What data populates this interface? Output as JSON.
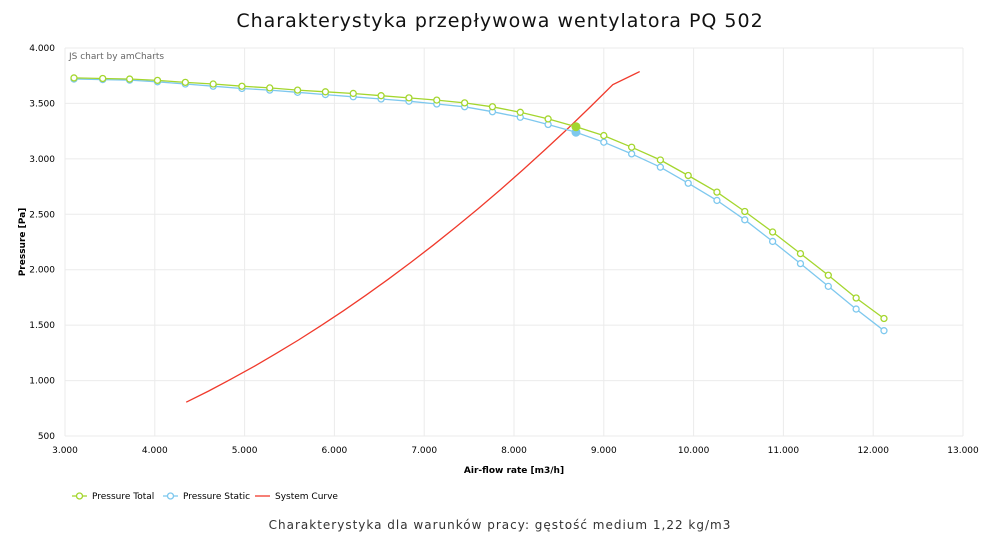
{
  "title": "Charakterystyka przepływowa wentylatora PQ 502",
  "subtitle": "Charakterystyka dla warunków pracy: gęstość medium 1,22 kg/m3",
  "credit": "JS chart by amCharts",
  "chart_data": {
    "type": "line",
    "xlabel": "Air-flow rate [m3/h]",
    "ylabel": "Pressure [Pa]",
    "xlim": [
      3000,
      13000
    ],
    "ylim": [
      500,
      4000
    ],
    "x_ticks": [
      "3.000",
      "4.000",
      "5.000",
      "6.000",
      "7.000",
      "8.000",
      "9.000",
      "10.000",
      "11.000",
      "12.000",
      "13.000"
    ],
    "y_ticks": [
      "500",
      "1.000",
      "1.500",
      "2.000",
      "2.500",
      "3.000",
      "3.500",
      "4.000"
    ],
    "grid": true,
    "legend_position": "bottom-left",
    "series": [
      {
        "name": "Pressure Total",
        "color": "#a4d62e",
        "marker": "circle",
        "x": [
          3100,
          3420,
          3720,
          4030,
          4340,
          4650,
          4970,
          5280,
          5590,
          5900,
          6210,
          6520,
          6830,
          7140,
          7450,
          7760,
          8070,
          8380,
          8690,
          9000,
          9310,
          9630,
          9940,
          10260,
          10570,
          10880,
          11190,
          11500,
          11810,
          12120
        ],
        "y": [
          3730,
          3725,
          3720,
          3708,
          3690,
          3675,
          3655,
          3640,
          3620,
          3605,
          3590,
          3570,
          3550,
          3530,
          3505,
          3470,
          3420,
          3360,
          3290,
          3210,
          3105,
          2990,
          2850,
          2700,
          2525,
          2340,
          2145,
          1950,
          1745,
          1560
        ],
        "highlight": {
          "x": 8690,
          "y": 3290
        }
      },
      {
        "name": "Pressure Static",
        "color": "#7ec8ee",
        "marker": "circle",
        "x": [
          3100,
          3420,
          3720,
          4030,
          4340,
          4650,
          4970,
          5280,
          5590,
          5900,
          6210,
          6520,
          6830,
          7140,
          7450,
          7760,
          8070,
          8380,
          8690,
          9000,
          9310,
          9630,
          9940,
          10260,
          10570,
          10880,
          11190,
          11500,
          11810,
          12120
        ],
        "y": [
          3720,
          3715,
          3710,
          3695,
          3675,
          3655,
          3635,
          3620,
          3600,
          3580,
          3560,
          3540,
          3520,
          3495,
          3470,
          3425,
          3375,
          3310,
          3240,
          3150,
          3045,
          2925,
          2780,
          2625,
          2450,
          2255,
          2055,
          1850,
          1645,
          1450
        ],
        "highlight": {
          "x": 8690,
          "y": 3240
        }
      },
      {
        "name": "System Curve",
        "color": "#f03a2c",
        "marker": "none",
        "x": [
          4350,
          4600,
          4850,
          5100,
          5350,
          5600,
          5850,
          6100,
          6350,
          6600,
          6850,
          7100,
          7350,
          7600,
          7850,
          8100,
          8350,
          8600,
          8850,
          9100,
          9400
        ],
        "y": [
          805,
          906,
          1013,
          1125,
          1243,
          1366,
          1495,
          1629,
          1769,
          1914,
          2065,
          2221,
          2383,
          2550,
          2723,
          2901,
          3085,
          3274,
          3469,
          3669,
          3787
        ]
      }
    ]
  }
}
